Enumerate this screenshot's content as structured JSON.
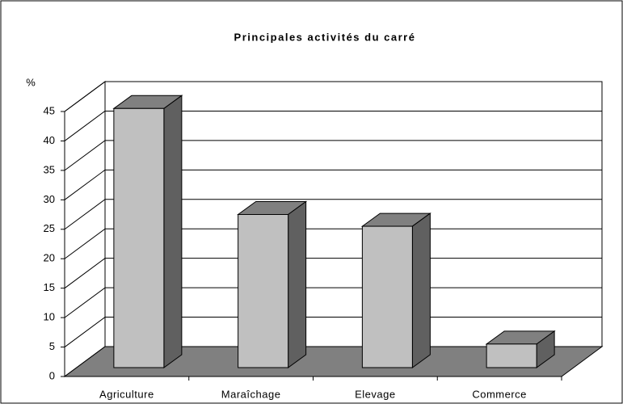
{
  "chart_data": {
    "type": "bar",
    "title": "Principales activités du carré",
    "y_label": "%",
    "categories": [
      "Agriculture",
      "Maraîchage",
      "Elevage",
      "Commerce"
    ],
    "values": [
      44,
      26,
      24,
      4
    ],
    "color": "#c0c0c0",
    "ylim": [
      0,
      45
    ],
    "yticks": [
      0,
      5,
      10,
      15,
      20,
      25,
      30,
      35,
      40,
      45
    ],
    "grid": true
  }
}
